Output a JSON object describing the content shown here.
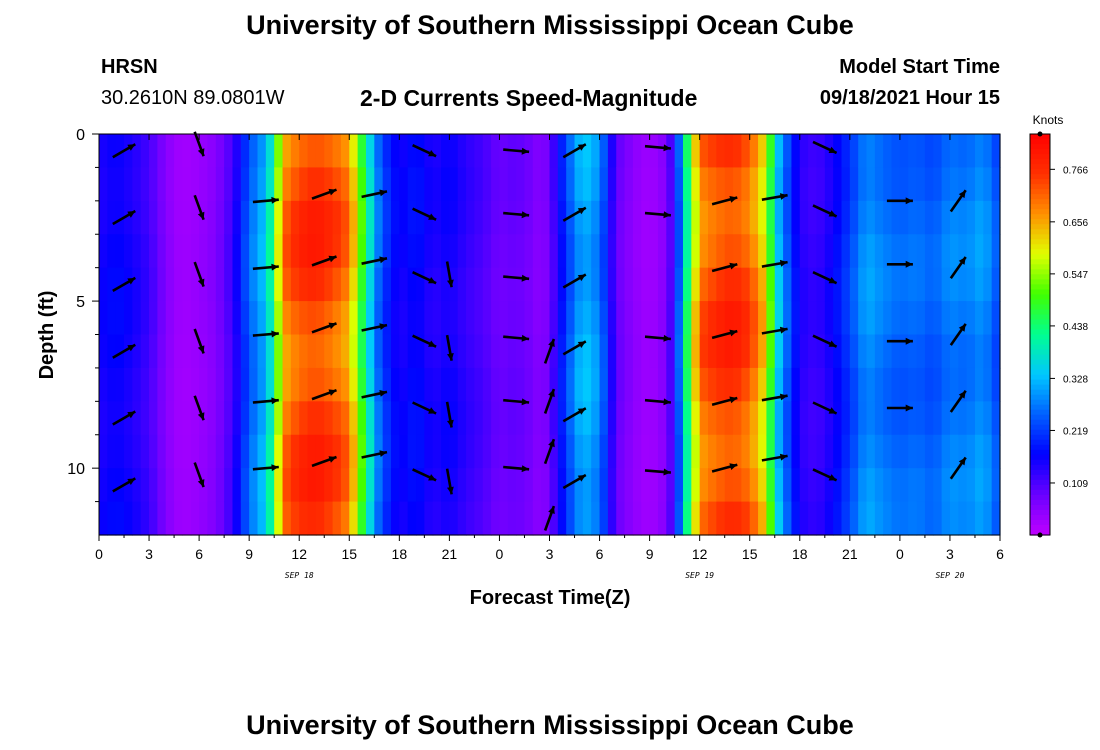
{
  "header": {
    "title_top": "University of Southern Mississippi Ocean Cube",
    "title_bottom": "University of Southern Mississippi Ocean Cube",
    "station": "HRSN",
    "coords": "30.2610N  89.0801W",
    "model_start_label": "Model Start Time",
    "model_start_value": "09/18/2021 Hour 15"
  },
  "chart_data": {
    "type": "heatmap",
    "title": "2-D Currents Speed-Magnitude",
    "xlabel": "Forecast Time(Z)",
    "ylabel": "Depth (ft)",
    "x_start_hour": 0,
    "x_end_hour": 54,
    "ylim": [
      0,
      12
    ],
    "y_ticks": [
      "0",
      "5",
      "10"
    ],
    "x_tick_labels": [
      "0",
      "3",
      "6",
      "9",
      "12",
      "15",
      "18",
      "21",
      "0",
      "3",
      "6",
      "9",
      "12",
      "15",
      "18",
      "21",
      "0",
      "3",
      "6"
    ],
    "date_labels": [
      {
        "label": "SEP 18",
        "hour": 12
      },
      {
        "label": "SEP 19",
        "hour": 36
      },
      {
        "label": "SEP 20",
        "hour": 51
      }
    ],
    "colorbar": {
      "unit": "Knots",
      "ticks": [
        "0.766",
        "0.656",
        "0.547",
        "0.438",
        "0.328",
        "0.219",
        "0.109"
      ],
      "tick_values": [
        0.766,
        0.656,
        0.547,
        0.438,
        0.328,
        0.219,
        0.109
      ],
      "min": 0.0,
      "max": 0.84,
      "colors": [
        "#c000ff",
        "#6a00ff",
        "#0000ff",
        "#0060ff",
        "#00c8ff",
        "#00ff90",
        "#40ff00",
        "#e0ff00",
        "#ff9000",
        "#ff3000",
        "#ff0000"
      ]
    },
    "speed_profile_hours": [
      0,
      1,
      2,
      3,
      4,
      4.5,
      5,
      6,
      7,
      8,
      9,
      10,
      10.5,
      11,
      12,
      13,
      14,
      15,
      16,
      16.5,
      17,
      18,
      19,
      20,
      21,
      22,
      23,
      24,
      25,
      26,
      26.5,
      27,
      28,
      29,
      30,
      31,
      32,
      33,
      34,
      34.5,
      35,
      36,
      37,
      38,
      39,
      40,
      40.5,
      41,
      42,
      43,
      44,
      45,
      46,
      47,
      48,
      49,
      50,
      51,
      52,
      53,
      54
    ],
    "speed_profile_knots": [
      0.15,
      0.17,
      0.15,
      0.12,
      0.06,
      0.04,
      0.03,
      0.04,
      0.06,
      0.12,
      0.25,
      0.33,
      0.45,
      0.68,
      0.74,
      0.76,
      0.73,
      0.68,
      0.42,
      0.3,
      0.22,
      0.15,
      0.18,
      0.14,
      0.16,
      0.13,
      0.11,
      0.08,
      0.09,
      0.07,
      0.05,
      0.08,
      0.22,
      0.33,
      0.28,
      0.09,
      0.05,
      0.03,
      0.06,
      0.15,
      0.34,
      0.7,
      0.74,
      0.76,
      0.72,
      0.6,
      0.38,
      0.28,
      0.14,
      0.12,
      0.16,
      0.22,
      0.3,
      0.27,
      0.25,
      0.26,
      0.24,
      0.28,
      0.27,
      0.3,
      0.22
    ],
    "depth_rows": [
      0,
      1,
      2,
      3,
      4,
      5,
      6,
      7,
      8,
      9,
      10,
      11,
      12
    ],
    "arrows": [
      {
        "hour": 1.5,
        "depths": [
          0.5,
          2.5,
          4.5,
          6.5,
          8.5,
          10.5
        ],
        "dir_deg": 60
      },
      {
        "hour": 6,
        "depths": [
          0.3,
          2.2,
          4.2,
          6.2,
          8.2,
          10.2
        ],
        "dir_deg": 160
      },
      {
        "hour": 10,
        "depths": [
          2,
          4,
          6,
          8,
          10
        ],
        "dir_deg": 85
      },
      {
        "hour": 13.5,
        "depths": [
          1.8,
          3.8,
          5.8,
          7.8,
          9.8
        ],
        "dir_deg": 70
      },
      {
        "hour": 16.5,
        "depths": [
          1.8,
          3.8,
          5.8,
          7.8,
          9.6
        ],
        "dir_deg": 78
      },
      {
        "hour": 19.5,
        "depths": [
          0.5,
          2.4,
          4.3,
          6.2,
          8.2,
          10.2
        ],
        "dir_deg": 115
      },
      {
        "hour": 21,
        "depths": [
          4.2,
          6.4,
          8.4,
          10.4
        ],
        "dir_deg": 170
      },
      {
        "hour": 25,
        "depths": [
          0.5,
          2.4,
          4.3,
          6.1,
          8.0,
          10.0
        ],
        "dir_deg": 95
      },
      {
        "hour": 28.5,
        "depths": [
          0.5,
          2.4,
          4.4,
          6.4,
          8.4,
          10.4
        ],
        "dir_deg": 60
      },
      {
        "hour": 27,
        "depths": [
          6.5,
          8.0,
          9.5,
          11.5
        ],
        "dir_deg": 20
      },
      {
        "hour": 33.5,
        "depths": [
          0.4,
          2.4,
          6.1,
          8.0,
          10.1
        ],
        "dir_deg": 95
      },
      {
        "hour": 37.5,
        "depths": [
          2.0,
          4.0,
          6.0,
          8.0,
          10.0
        ],
        "dir_deg": 75
      },
      {
        "hour": 40.5,
        "depths": [
          1.9,
          3.9,
          5.9,
          7.9,
          9.7
        ],
        "dir_deg": 80
      },
      {
        "hour": 43.5,
        "depths": [
          0.4,
          2.3,
          4.3,
          6.2,
          8.2,
          10.2
        ],
        "dir_deg": 115
      },
      {
        "hour": 48,
        "depths": [
          2.0,
          3.9,
          6.2,
          8.2
        ],
        "dir_deg": 90
      },
      {
        "hour": 51.5,
        "depths": [
          2.0,
          4.0,
          6.0,
          8.0,
          10.0
        ],
        "dir_deg": 35
      }
    ]
  }
}
